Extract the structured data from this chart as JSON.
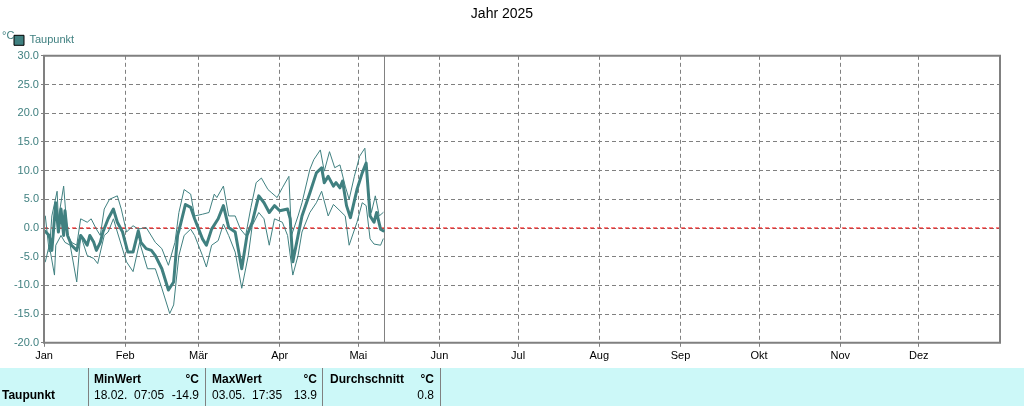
{
  "chart_data": {
    "type": "line",
    "title": "Jahr 2025",
    "ylabel": "°C",
    "xlim": [
      "2025-01-01",
      "2026-01-01"
    ],
    "xticks": [
      {
        "value": "2025-01-01",
        "label": "Jan"
      },
      {
        "value": "2025-02-01",
        "label": "Feb"
      },
      {
        "value": "2025-03-01",
        "label": "Mär"
      },
      {
        "value": "2025-04-01",
        "label": "Apr"
      },
      {
        "value": "2025-05-01",
        "label": "Mai"
      },
      {
        "value": "2025-06-01",
        "label": "Jun"
      },
      {
        "value": "2025-07-01",
        "label": "Jul"
      },
      {
        "value": "2025-08-01",
        "label": "Aug"
      },
      {
        "value": "2025-09-01",
        "label": "Sep"
      },
      {
        "value": "2025-10-01",
        "label": "Okt"
      },
      {
        "value": "2025-11-01",
        "label": "Nov"
      },
      {
        "value": "2025-12-01",
        "label": "Dez"
      }
    ],
    "ylim": [
      -20,
      30
    ],
    "yticks": [
      {
        "value": -20,
        "label": "-20.0"
      },
      {
        "value": -15,
        "label": "-15.0"
      },
      {
        "value": -10,
        "label": "-10.0"
      },
      {
        "value": -5,
        "label": "-5.0"
      },
      {
        "value": 0,
        "label": "0.0"
      },
      {
        "value": 5,
        "label": "5.0"
      },
      {
        "value": 10,
        "label": "10.0"
      },
      {
        "value": 15,
        "label": "15.0"
      },
      {
        "value": 20,
        "label": "20.0"
      },
      {
        "value": 25,
        "label": "25.0"
      },
      {
        "value": 30,
        "label": "30.0"
      }
    ],
    "grid": true,
    "legend": "top left",
    "line_style": "solid",
    "marker": "none",
    "ref_lines": [
      {
        "axis": "y",
        "value": 0,
        "color": "#ff0000",
        "line_style": "dashed"
      },
      {
        "axis": "x",
        "value": "2025-05-11",
        "color": "#808080",
        "line_style": "solid"
      }
    ],
    "series": [
      {
        "name": "Taupunkt",
        "color": "#408080",
        "x": [
          "2025-01-01T12:00",
          "2025-01-03",
          "2025-01-04",
          "2025-01-05T12:00",
          "2025-01-06T12:00",
          "2025-01-07T12:00",
          "2025-01-08T12:00",
          "2025-01-09",
          "2025-01-10",
          "2025-01-11T12:00",
          "2025-01-13T12:00",
          "2025-01-15",
          "2025-01-16",
          "2025-01-17T12:00",
          "2025-01-18T12:00",
          "2025-01-20",
          "2025-01-21",
          "2025-01-22T12:00",
          "2025-01-23T12:00",
          "2025-01-25T12:00",
          "2025-01-27T12:00",
          "2025-01-29",
          "2025-01-31",
          "2025-02-02",
          "2025-02-04",
          "2025-02-06",
          "2025-02-07",
          "2025-02-09",
          "2025-02-11",
          "2025-02-12T12:00",
          "2025-02-15",
          "2025-02-17T12:00",
          "2025-02-19T12:00",
          "2025-02-21",
          "2025-02-22",
          "2025-02-24",
          "2025-02-26",
          "2025-02-27T12:00",
          "2025-03-02T12:00",
          "2025-03-04",
          "2025-03-06",
          "2025-03-08T12:00",
          "2025-03-10T12:00",
          "2025-03-12T12:00",
          "2025-03-15",
          "2025-03-17T12:00",
          "2025-03-19T12:00",
          "2025-03-21T12:00",
          "2025-03-24",
          "2025-03-26",
          "2025-03-28",
          "2025-03-30",
          "2025-04-01",
          "2025-04-04",
          "2025-04-05",
          "2025-04-06",
          "2025-04-08",
          "2025-04-09T12:00",
          "2025-04-12T12:00",
          "2025-04-15",
          "2025-04-17",
          "2025-04-18",
          "2025-04-19T12:00",
          "2025-04-21T12:00",
          "2025-04-22T12:00",
          "2025-04-24",
          "2025-04-25",
          "2025-04-26T12:00",
          "2025-04-28",
          "2025-04-30T12:00",
          "2025-05-02T12:00",
          "2025-05-04",
          "2025-05-05T12:00",
          "2025-05-07",
          "2025-05-08",
          "2025-05-09T12:00",
          "2025-05-10T12:00"
        ],
        "values": [
          -0.6,
          -1.3,
          -3.9,
          4.4,
          -0.7,
          3.3,
          -1.3,
          3.0,
          -1.3,
          -3.0,
          -3.9,
          -1.3,
          -1.9,
          -3.0,
          -1.3,
          -2.5,
          -3.9,
          -2.5,
          -0.7,
          1.6,
          3.3,
          1.0,
          -0.7,
          -4.2,
          -4.2,
          -0.5,
          -2.5,
          -3.6,
          -3.9,
          -4.8,
          -7.1,
          -10.8,
          -9.4,
          -1.3,
          0.4,
          4.1,
          3.6,
          1.6,
          -1.9,
          -3.0,
          -0.2,
          1.6,
          3.9,
          0.1,
          -0.7,
          -7.1,
          -1.3,
          1.0,
          5.6,
          4.4,
          2.7,
          3.9,
          3.0,
          3.3,
          1.6,
          -5.9,
          -1.3,
          2.1,
          6.1,
          9.6,
          10.5,
          7.9,
          9.0,
          7.3,
          7.9,
          7.0,
          8.2,
          3.9,
          1.8,
          6.7,
          9.6,
          11.3,
          2.1,
          1.0,
          2.7,
          -0.2,
          -0.5
        ]
      },
      {
        "color": "#408080",
        "x": [
          "2025-01-01T12:00",
          "2025-01-03",
          "2025-01-04",
          "2025-01-06",
          "2025-01-06T12:00",
          "2025-01-08T12:00",
          "2025-01-10",
          "2025-01-11T12:00",
          "2025-01-13T12:00",
          "2025-01-15",
          "2025-01-17T12:00",
          "2025-01-19",
          "2025-01-21",
          "2025-01-22T12:00",
          "2025-01-24",
          "2025-01-26",
          "2025-01-29",
          "2025-01-30T12:00",
          "2025-02-01T12:00",
          "2025-02-04",
          "2025-02-06",
          "2025-02-09",
          "2025-02-12T12:00",
          "2025-02-15",
          "2025-02-17T12:00",
          "2025-02-20",
          "2025-02-21T12:00",
          "2025-02-23T12:00",
          "2025-02-26",
          "2025-02-27T12:00",
          "2025-03-02T12:00",
          "2025-03-05",
          "2025-03-07",
          "2025-03-08",
          "2025-03-10T12:00",
          "2025-03-12T12:00",
          "2025-03-15",
          "2025-03-17",
          "2025-03-19",
          "2025-03-21",
          "2025-03-23",
          "2025-03-25",
          "2025-03-27T12:00",
          "2025-03-29",
          "2025-03-31",
          "2025-04-02",
          "2025-04-04T12:00",
          "2025-04-05T12:00",
          "2025-04-08",
          "2025-04-09T12:00",
          "2025-04-12T12:00",
          "2025-04-14",
          "2025-04-16T12:00",
          "2025-04-18",
          "2025-04-20",
          "2025-04-22",
          "2025-04-24",
          "2025-04-26",
          "2025-04-27T12:00",
          "2025-04-29T12:00",
          "2025-05-01T12:00",
          "2025-05-03T12:00",
          "2025-05-05",
          "2025-05-06",
          "2025-05-07T12:00",
          "2025-05-09",
          "2025-05-10T12:00"
        ],
        "values": [
          2.1,
          -4.2,
          2.1,
          6.4,
          1.6,
          7.3,
          -1.3,
          -2.5,
          -3.0,
          1.6,
          1.0,
          1.6,
          -0.2,
          -1.3,
          3.3,
          5.0,
          5.6,
          3.3,
          -0.7,
          0.4,
          -0.2,
          0.1,
          -2.5,
          -3.6,
          -6.5,
          -2.5,
          2.7,
          6.7,
          5.9,
          2.1,
          2.4,
          2.7,
          5.9,
          5.3,
          7.3,
          2.1,
          2.1,
          -0.2,
          -1.3,
          3.6,
          7.9,
          8.7,
          6.7,
          6.1,
          5.3,
          7.0,
          9.0,
          -1.3,
          2.1,
          4.4,
          10.2,
          11.9,
          13.6,
          9.9,
          13.3,
          10.5,
          11.0,
          7.3,
          5.0,
          9.0,
          12.5,
          13.9,
          5.6,
          2.7,
          5.6,
          2.1,
          2.7
        ]
      },
      {
        "color": "#408080",
        "x": [
          "2025-01-01T12:00",
          "2025-01-03",
          "2025-01-05",
          "2025-01-05T12:00",
          "2025-01-07T12:00",
          "2025-01-09",
          "2025-01-11",
          "2025-01-13T12:00",
          "2025-01-15",
          "2025-01-17T12:00",
          "2025-01-20",
          "2025-01-21T12:00",
          "2025-01-24",
          "2025-01-25T12:00",
          "2025-01-27T12:00",
          "2025-01-29",
          "2025-02-01T12:00",
          "2025-02-04",
          "2025-02-06T12:00",
          "2025-02-09T12:00",
          "2025-02-12T12:00",
          "2025-02-15",
          "2025-02-18",
          "2025-02-19T12:00",
          "2025-02-21T12:00",
          "2025-02-23T12:00",
          "2025-02-26",
          "2025-02-27T12:00",
          "2025-03-02T12:00",
          "2025-03-04",
          "2025-03-06",
          "2025-03-08T12:00",
          "2025-03-10T12:00",
          "2025-03-12T12:00",
          "2025-03-15",
          "2025-03-17T12:00",
          "2025-03-20",
          "2025-03-21T12:00",
          "2025-03-24",
          "2025-03-26",
          "2025-03-28",
          "2025-03-30",
          "2025-04-02",
          "2025-04-04",
          "2025-04-06",
          "2025-04-08",
          "2025-04-09T12:00",
          "2025-04-12T12:00",
          "2025-04-15",
          "2025-04-17",
          "2025-04-19T12:00",
          "2025-04-21T12:00",
          "2025-04-24",
          "2025-04-26",
          "2025-04-27T12:00",
          "2025-04-30T12:00",
          "2025-05-02T12:00",
          "2025-05-04",
          "2025-05-05T12:00",
          "2025-05-07",
          "2025-05-09T12:00",
          "2025-05-10T12:00"
        ],
        "values": [
          -5.9,
          -3.0,
          -8.2,
          -3.0,
          -1.3,
          -2.5,
          -3.0,
          -9.4,
          -1.3,
          -4.8,
          -5.3,
          -6.2,
          -1.3,
          -0.7,
          1.6,
          -0.7,
          -5.9,
          -7.6,
          -2.5,
          -7.1,
          -7.1,
          -10.5,
          -14.9,
          -13.4,
          -4.8,
          -1.3,
          -0.2,
          -1.3,
          -4.8,
          -6.8,
          -3.0,
          -2.2,
          0.7,
          -1.3,
          -4.2,
          -10.5,
          -4.8,
          0.4,
          2.7,
          1.6,
          -3.0,
          1.6,
          1.0,
          -1.3,
          -8.2,
          -4.8,
          -0.7,
          2.7,
          4.4,
          6.4,
          2.1,
          4.1,
          3.0,
          2.1,
          -3.0,
          1.0,
          4.4,
          3.9,
          -1.9,
          -2.8,
          -3.0,
          -1.9
        ]
      }
    ],
    "annotations": [
      "Taupunkt",
      "MinWert",
      "°C",
      "18.02.  07:05",
      "-14.9",
      "MaxWert",
      "°C",
      "03.05.  17:35",
      "13.9",
      "Durchschnitt",
      "°C",
      "0.8"
    ]
  }
}
